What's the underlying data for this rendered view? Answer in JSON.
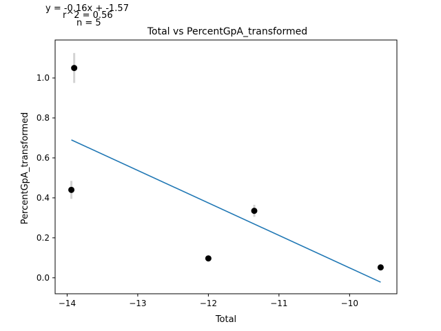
{
  "annotations": {
    "equation": "y = -0.16x + -1.57",
    "r2": "r^2 = 0.56",
    "n": "n = 5"
  },
  "chart_data": {
    "type": "scatter",
    "title": "Total vs PercentGpA_transformed",
    "xlabel": "Total",
    "ylabel": "PercentGpA_transformed",
    "xlim": [
      -14.17,
      -9.33
    ],
    "ylim": [
      -0.08,
      1.19
    ],
    "x_ticks": [
      -14,
      -13,
      -12,
      -11,
      -10
    ],
    "x_tick_labels": [
      "−14",
      "−13",
      "−12",
      "−11",
      "−10"
    ],
    "y_ticks": [
      0.0,
      0.2,
      0.4,
      0.6,
      0.8,
      1.0
    ],
    "y_tick_labels": [
      "0.0",
      "0.2",
      "0.4",
      "0.6",
      "0.8",
      "1.0"
    ],
    "grid": false,
    "points": [
      {
        "x": -13.94,
        "y": 0.44,
        "err": 0.045
      },
      {
        "x": -13.9,
        "y": 1.05,
        "err": 0.075
      },
      {
        "x": -12.0,
        "y": 0.097,
        "err": 0.0
      },
      {
        "x": -11.35,
        "y": 0.335,
        "err": 0.03
      },
      {
        "x": -9.56,
        "y": 0.052,
        "err": 0.0
      }
    ],
    "fit_line": {
      "x": [
        -13.94,
        -9.56
      ],
      "y": [
        0.69,
        -0.022
      ]
    },
    "colors": {
      "points": "#000000",
      "errorbars": "#d3d3d3",
      "fit": "#1f77b4",
      "axes": "#000000"
    }
  }
}
